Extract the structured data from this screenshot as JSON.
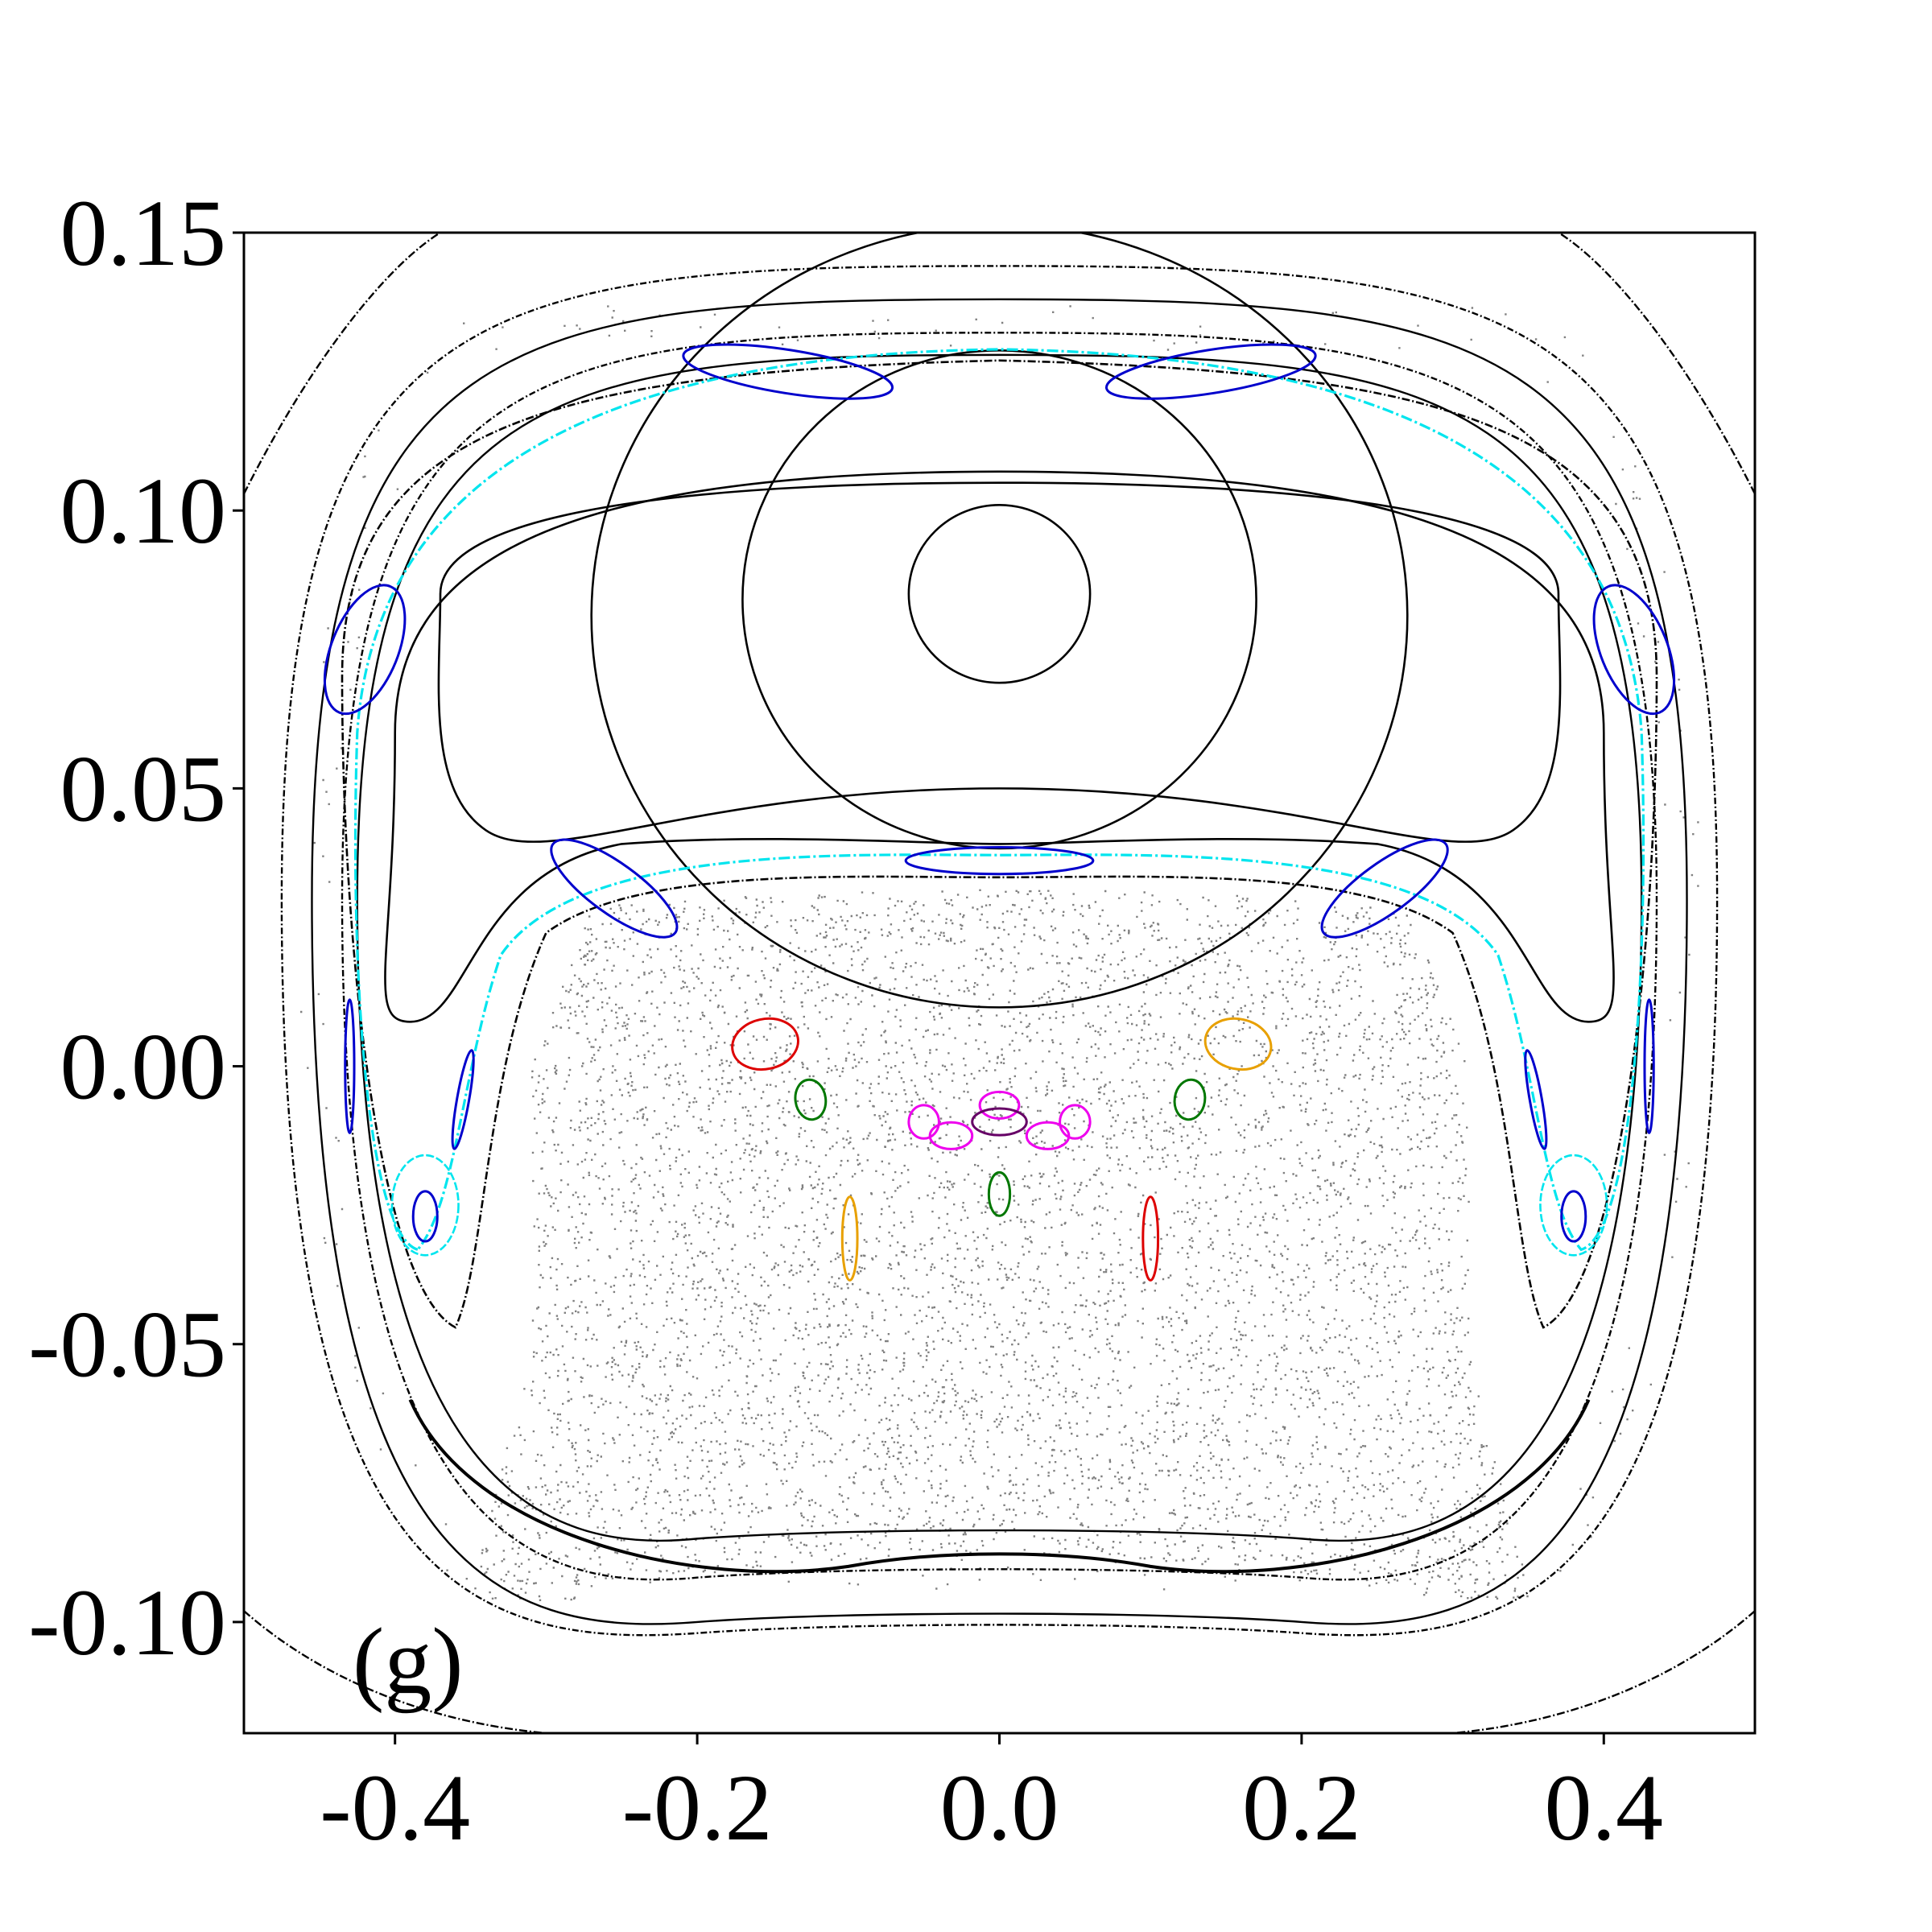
{
  "chart_data": {
    "type": "scatter",
    "title": "",
    "xlabel": "",
    "ylabel": "",
    "panel_label": "(g)",
    "xlim": [
      -0.5,
      0.5
    ],
    "ylim": [
      -0.12,
      0.15
    ],
    "x_ticks": [
      {
        "value": -0.4,
        "label": "-0.4"
      },
      {
        "value": -0.2,
        "label": "-0.2"
      },
      {
        "value": 0.0,
        "label": "0.0"
      },
      {
        "value": 0.2,
        "label": "0.2"
      },
      {
        "value": 0.4,
        "label": "0.4"
      }
    ],
    "y_ticks": [
      {
        "value": 0.15,
        "label": "0.15"
      },
      {
        "value": 0.1,
        "label": "0.10"
      },
      {
        "value": 0.05,
        "label": "0.05"
      },
      {
        "value": 0.0,
        "label": "0.00"
      },
      {
        "value": -0.05,
        "label": "-0.05"
      },
      {
        "value": -0.1,
        "label": "-0.10"
      }
    ],
    "grid": false,
    "legend": "none",
    "colors": {
      "chaotic": "#808080",
      "invariant_curve": "#000000",
      "separatrix": "#00e5ee",
      "island_chain": "#0000cc",
      "red": "#dd0000",
      "orange": "#e8a000",
      "green": "#007700",
      "magenta": "#ee00ee",
      "purple": "#660066"
    },
    "chaotic_regions": [
      {
        "name": "lower chaotic sea",
        "x_range": [
          -0.32,
          0.32
        ],
        "y_range": [
          -0.095,
          0.032
        ]
      },
      {
        "name": "outer chaotic band",
        "x_range": [
          -0.47,
          0.47
        ],
        "y_range": [
          -0.095,
          0.14
        ]
      }
    ],
    "inner_vortex_ellipses": [
      {
        "cx": 0.0,
        "cy": 0.085,
        "rx": 0.06,
        "ry": 0.005
      },
      {
        "cx": 0.0,
        "cy": 0.084,
        "rx": 0.17,
        "ry": 0.014
      },
      {
        "cx": 0.0,
        "cy": 0.081,
        "rx": 0.27,
        "ry": 0.022
      }
    ],
    "closed_curves": [
      {
        "x_half": 0.37,
        "y_top": 0.062,
        "y_bottom_side": 0.045,
        "note": "rounded-rectangle invariant curve around upper vortex"
      }
    ],
    "outer_curves": [
      {
        "x_half": 0.425,
        "y_top": 0.128,
        "y_bottom": -0.085
      },
      {
        "x_half": 0.435,
        "y_top": 0.132,
        "y_bottom": -0.092
      },
      {
        "x_half": 0.455,
        "y_top": 0.138,
        "y_bottom": -0.1
      },
      {
        "x_half": 0.475,
        "y_top": 0.144,
        "y_bottom": -0.102
      }
    ],
    "small_islands": [
      {
        "color": "red",
        "cx": -0.155,
        "cy": 0.004,
        "rx": 0.022,
        "ry": 0.0015,
        "rot": -12
      },
      {
        "color": "orange",
        "cx": 0.158,
        "cy": 0.004,
        "rx": 0.022,
        "ry": 0.0015,
        "rot": 12
      },
      {
        "color": "green",
        "cx": -0.125,
        "cy": -0.006,
        "rx": 0.01,
        "ry": 0.0012,
        "rot": -8
      },
      {
        "color": "green",
        "cx": 0.126,
        "cy": -0.006,
        "rx": 0.01,
        "ry": 0.0012,
        "rot": 8
      },
      {
        "color": "magenta",
        "cx": -0.05,
        "cy": -0.01,
        "rx": 0.01,
        "ry": 0.001,
        "rot": 0
      },
      {
        "color": "magenta",
        "cx": 0.0,
        "cy": -0.007,
        "rx": 0.013,
        "ry": 0.0008,
        "rot": 0
      },
      {
        "color": "magenta",
        "cx": 0.05,
        "cy": -0.01,
        "rx": 0.01,
        "ry": 0.001,
        "rot": 0
      },
      {
        "color": "magenta",
        "cx": -0.032,
        "cy": -0.0125,
        "rx": 0.014,
        "ry": 0.0008,
        "rot": 0
      },
      {
        "color": "magenta",
        "cx": 0.032,
        "cy": -0.0125,
        "rx": 0.014,
        "ry": 0.0008,
        "rot": 0
      },
      {
        "color": "purple",
        "cx": 0.0,
        "cy": -0.01,
        "rx": 0.018,
        "ry": 0.0008,
        "rot": 0
      },
      {
        "color": "green",
        "cx": 0.0,
        "cy": -0.023,
        "rx": 0.007,
        "ry": 0.0013,
        "rot": 0
      },
      {
        "color": "orange",
        "cx": -0.099,
        "cy": -0.031,
        "rx": 0.005,
        "ry": 0.0025,
        "rot": 0
      },
      {
        "color": "red",
        "cx": 0.1,
        "cy": -0.031,
        "rx": 0.005,
        "ry": 0.0025,
        "rot": 0
      }
    ],
    "blue_islands": [
      {
        "cx": -0.38,
        "cy": -0.027,
        "rx": 0.008,
        "ry": 0.0045,
        "rot": 0
      },
      {
        "cx": 0.38,
        "cy": -0.027,
        "rx": 0.008,
        "ry": 0.0045,
        "rot": 0
      },
      {
        "cx": -0.355,
        "cy": -0.006,
        "rx": 0.004,
        "ry": 0.009,
        "rot": 10
      },
      {
        "cx": 0.355,
        "cy": -0.006,
        "rx": 0.004,
        "ry": 0.009,
        "rot": -10
      },
      {
        "cx": -0.43,
        "cy": 0.0,
        "rx": 0.003,
        "ry": 0.012,
        "rot": 0
      },
      {
        "cx": 0.43,
        "cy": 0.0,
        "rx": 0.003,
        "ry": 0.012,
        "rot": 0
      },
      {
        "cx": -0.255,
        "cy": 0.032,
        "rx": 0.05,
        "ry": 0.0015,
        "rot": 36
      },
      {
        "cx": 0.255,
        "cy": 0.032,
        "rx": 0.05,
        "ry": 0.0015,
        "rot": -36
      },
      {
        "cx": 0.0,
        "cy": 0.037,
        "rx": 0.062,
        "ry": 0.0008,
        "rot": 0
      },
      {
        "cx": -0.42,
        "cy": 0.075,
        "rx": 0.045,
        "ry": 0.002,
        "rot": -68
      },
      {
        "cx": 0.42,
        "cy": 0.075,
        "rx": 0.045,
        "ry": 0.002,
        "rot": 68
      },
      {
        "cx": -0.14,
        "cy": 0.125,
        "rx": 0.07,
        "ry": 0.0013,
        "rot": 9
      },
      {
        "cx": 0.14,
        "cy": 0.125,
        "rx": 0.07,
        "ry": 0.0013,
        "rot": -9
      }
    ]
  }
}
